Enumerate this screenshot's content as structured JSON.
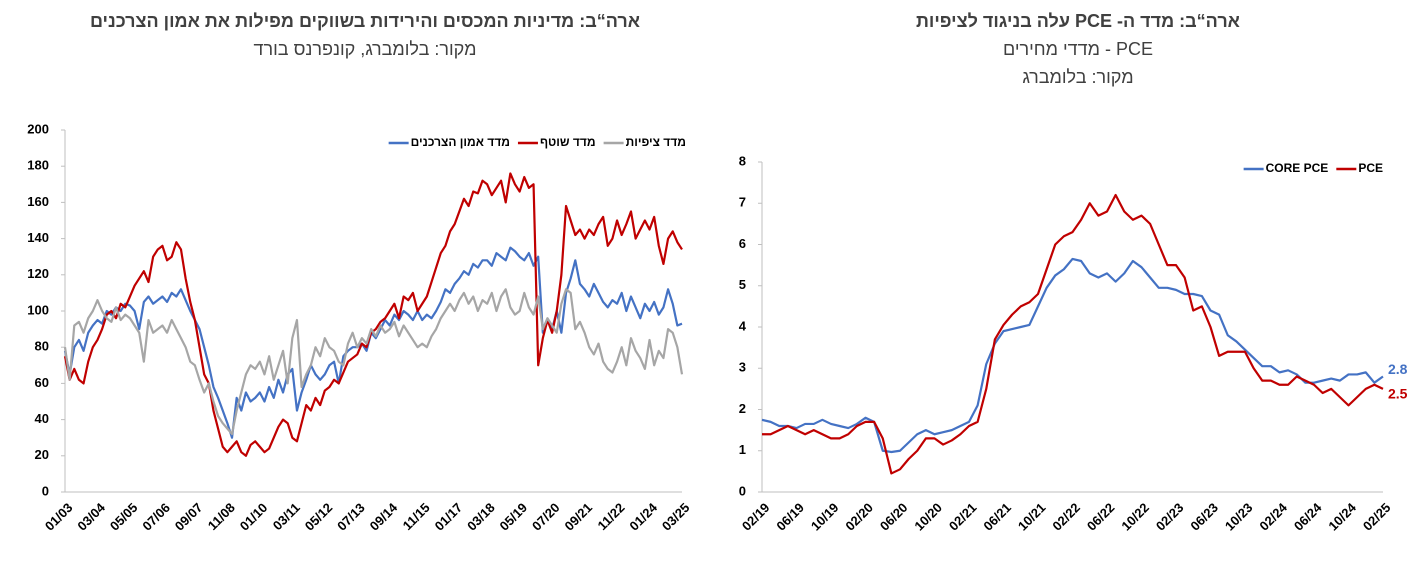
{
  "chart_data": [
    {
      "type": "line",
      "title": "ארה“ב: מדיניות המכסים והירידות בשווקים מפילות את אמון הצרכנים",
      "source": "מקור: בלומברג, קונפרנס בורד",
      "categories": [
        "01/03",
        null,
        null,
        null,
        null,
        null,
        null,
        "03/04",
        null,
        null,
        null,
        null,
        null,
        null,
        "05/05",
        null,
        null,
        null,
        null,
        null,
        null,
        "07/06",
        null,
        null,
        null,
        null,
        null,
        null,
        "09/07",
        null,
        null,
        null,
        null,
        null,
        null,
        "11/08",
        null,
        null,
        null,
        null,
        null,
        null,
        "01/10",
        null,
        null,
        null,
        null,
        null,
        null,
        "03/11",
        null,
        null,
        null,
        null,
        null,
        null,
        "05/12",
        null,
        null,
        null,
        null,
        null,
        null,
        "07/13",
        null,
        null,
        null,
        null,
        null,
        null,
        "09/14",
        null,
        null,
        null,
        null,
        null,
        null,
        "11/15",
        null,
        null,
        null,
        null,
        null,
        null,
        "01/17",
        null,
        null,
        null,
        null,
        null,
        null,
        "03/18",
        null,
        null,
        null,
        null,
        null,
        null,
        "05/19",
        null,
        null,
        null,
        null,
        null,
        null,
        "07/20",
        null,
        null,
        null,
        null,
        null,
        null,
        "09/21",
        null,
        null,
        null,
        null,
        null,
        null,
        "11/22",
        null,
        null,
        null,
        null,
        null,
        null,
        "01/24",
        null,
        null,
        null,
        null,
        null,
        null,
        "03/25"
      ],
      "series": [
        {
          "name": "מדד אמון הצרכנים",
          "color": "#4472c4",
          "values": [
            78,
            65,
            80,
            84,
            78,
            88,
            92,
            95,
            93,
            100,
            98,
            102,
            100,
            104,
            103,
            100,
            90,
            105,
            108,
            104,
            106,
            108,
            105,
            110,
            108,
            112,
            106,
            100,
            95,
            90,
            80,
            70,
            58,
            52,
            45,
            38,
            30,
            52,
            45,
            55,
            50,
            52,
            55,
            50,
            58,
            52,
            62,
            55,
            65,
            68,
            45,
            55,
            62,
            70,
            65,
            62,
            65,
            70,
            72,
            60,
            75,
            78,
            80,
            80,
            82,
            78,
            88,
            85,
            90,
            95,
            92,
            98,
            95,
            100,
            98,
            95,
            100,
            95,
            98,
            96,
            100,
            105,
            112,
            110,
            115,
            118,
            122,
            120,
            126,
            124,
            128,
            128,
            125,
            132,
            130,
            128,
            135,
            133,
            130,
            128,
            132,
            125,
            130,
            88,
            95,
            90,
            100,
            88,
            110,
            118,
            128,
            115,
            112,
            108,
            115,
            110,
            105,
            102,
            106,
            104,
            110,
            100,
            108,
            102,
            96,
            104,
            100,
            105,
            98,
            102,
            112,
            104,
            92,
            93
          ]
        },
        {
          "name": "מדד שוטף",
          "color": "#c00000",
          "values": [
            75,
            62,
            68,
            62,
            60,
            72,
            80,
            84,
            90,
            98,
            100,
            96,
            104,
            102,
            108,
            114,
            118,
            122,
            116,
            130,
            134,
            136,
            128,
            130,
            138,
            134,
            118,
            105,
            95,
            80,
            65,
            60,
            45,
            35,
            25,
            22,
            25,
            28,
            22,
            20,
            26,
            28,
            25,
            22,
            24,
            30,
            36,
            40,
            38,
            30,
            28,
            38,
            48,
            45,
            52,
            48,
            56,
            58,
            62,
            60,
            66,
            72,
            74,
            76,
            82,
            80,
            88,
            90,
            94,
            96,
            100,
            104,
            96,
            108,
            106,
            110,
            100,
            104,
            108,
            116,
            124,
            132,
            136,
            144,
            148,
            155,
            162,
            158,
            166,
            165,
            172,
            170,
            164,
            168,
            172,
            160,
            176,
            170,
            166,
            174,
            168,
            170,
            70,
            85,
            95,
            88,
            100,
            120,
            158,
            150,
            142,
            145,
            140,
            145,
            142,
            148,
            152,
            136,
            140,
            150,
            142,
            148,
            155,
            140,
            145,
            150,
            145,
            152,
            136,
            126,
            140,
            144,
            138,
            134
          ]
        },
        {
          "name": "מדד ציפיות",
          "color": "#a6a6a6",
          "values": [
            80,
            62,
            92,
            94,
            88,
            96,
            100,
            106,
            100,
            96,
            94,
            102,
            95,
            98,
            96,
            92,
            88,
            72,
            95,
            88,
            90,
            92,
            88,
            95,
            90,
            85,
            80,
            72,
            70,
            62,
            55,
            60,
            50,
            42,
            38,
            35,
            32,
            45,
            55,
            65,
            70,
            68,
            72,
            65,
            75,
            62,
            70,
            78,
            60,
            85,
            95,
            58,
            65,
            70,
            80,
            75,
            85,
            80,
            78,
            72,
            70,
            82,
            88,
            80,
            85,
            82,
            90,
            86,
            92,
            88,
            90,
            94,
            86,
            92,
            88,
            84,
            80,
            82,
            80,
            86,
            90,
            96,
            100,
            104,
            100,
            106,
            110,
            104,
            108,
            100,
            106,
            104,
            110,
            100,
            108,
            112,
            102,
            98,
            100,
            110,
            102,
            98,
            108,
            90,
            96,
            92,
            88,
            104,
            112,
            110,
            90,
            94,
            88,
            80,
            76,
            82,
            72,
            68,
            66,
            72,
            80,
            70,
            85,
            78,
            74,
            68,
            84,
            70,
            78,
            74,
            90,
            88,
            80,
            65
          ]
        }
      ],
      "ylim": [
        0,
        200
      ],
      "yticks": [
        0,
        20,
        40,
        60,
        80,
        100,
        120,
        140,
        160,
        180,
        200
      ],
      "grid": false,
      "legend": "upper right"
    },
    {
      "type": "line",
      "title": "ארה“ב: מדד ה- PCE עלה בניגוד לציפיות",
      "subtitle": "מדדי מחירים - PCE",
      "source": "מקור: בלומברג",
      "categories": [
        "02/19",
        null,
        null,
        null,
        "06/19",
        null,
        null,
        null,
        "10/19",
        null,
        null,
        null,
        "02/20",
        null,
        null,
        null,
        "06/20",
        null,
        null,
        null,
        "10/20",
        null,
        null,
        null,
        "02/21",
        null,
        null,
        null,
        "06/21",
        null,
        null,
        null,
        "10/21",
        null,
        null,
        null,
        "02/22",
        null,
        null,
        null,
        "06/22",
        null,
        null,
        null,
        "10/22",
        null,
        null,
        null,
        "02/23",
        null,
        null,
        null,
        "06/23",
        null,
        null,
        null,
        "10/23",
        null,
        null,
        null,
        "02/24",
        null,
        null,
        null,
        "06/24",
        null,
        null,
        null,
        "10/24",
        null,
        null,
        null,
        "02/25"
      ],
      "series": [
        {
          "name": "CORE PCE",
          "color": "#4472c4",
          "values": [
            1.75,
            1.7,
            1.6,
            1.6,
            1.55,
            1.65,
            1.65,
            1.75,
            1.65,
            1.6,
            1.55,
            1.65,
            1.8,
            1.7,
            1.0,
            0.97,
            1.0,
            1.2,
            1.4,
            1.5,
            1.4,
            1.45,
            1.5,
            1.6,
            1.7,
            2.1,
            3.1,
            3.6,
            3.9,
            3.95,
            4.0,
            4.05,
            4.5,
            4.95,
            5.25,
            5.4,
            5.65,
            5.6,
            5.3,
            5.2,
            5.3,
            5.1,
            5.3,
            5.6,
            5.45,
            5.2,
            4.95,
            4.95,
            4.9,
            4.8,
            4.8,
            4.75,
            4.4,
            4.3,
            3.8,
            3.65,
            3.45,
            3.25,
            3.05,
            3.05,
            2.9,
            2.95,
            2.85,
            2.65,
            2.65,
            2.7,
            2.75,
            2.7,
            2.85,
            2.85,
            2.9,
            2.65,
            2.8
          ]
        },
        {
          "name": "PCE",
          "color": "#c00000",
          "values": [
            1.4,
            1.4,
            1.5,
            1.6,
            1.5,
            1.4,
            1.5,
            1.4,
            1.3,
            1.3,
            1.4,
            1.6,
            1.7,
            1.7,
            1.3,
            0.45,
            0.55,
            0.8,
            1.0,
            1.3,
            1.3,
            1.15,
            1.25,
            1.4,
            1.6,
            1.7,
            2.5,
            3.7,
            4.05,
            4.3,
            4.5,
            4.6,
            4.8,
            5.4,
            6.0,
            6.2,
            6.3,
            6.6,
            7.0,
            6.7,
            6.8,
            7.2,
            6.8,
            6.6,
            6.7,
            6.5,
            6.0,
            5.5,
            5.5,
            5.2,
            4.4,
            4.5,
            4.0,
            3.3,
            3.4,
            3.4,
            3.4,
            3.0,
            2.7,
            2.7,
            2.6,
            2.6,
            2.8,
            2.7,
            2.6,
            2.4,
            2.5,
            2.3,
            2.1,
            2.3,
            2.5,
            2.6,
            2.5
          ]
        }
      ],
      "ylim": [
        0,
        8
      ],
      "yticks": [
        0,
        1,
        2,
        3,
        4,
        5,
        6,
        7,
        8
      ],
      "grid": false,
      "legend": "upper right",
      "end_labels": true
    }
  ]
}
